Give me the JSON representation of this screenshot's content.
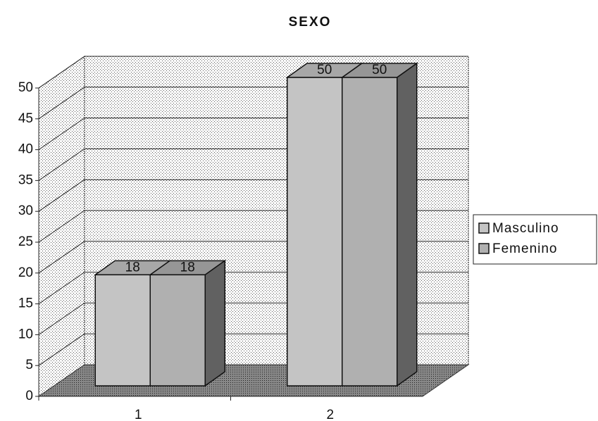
{
  "chart_data": {
    "type": "bar3d",
    "title": "SEXO",
    "categories": [
      "1",
      "2"
    ],
    "series": [
      {
        "name": "Masculino",
        "color": "#c4c4c4",
        "values": [
          18,
          50
        ]
      },
      {
        "name": "Femenino",
        "color": "#b0b0b0",
        "values": [
          18,
          50
        ]
      }
    ],
    "ylim": [
      0,
      50
    ],
    "yticks": [
      0,
      5,
      10,
      15,
      20,
      25,
      30,
      35,
      40,
      45,
      50
    ],
    "grid": true,
    "legend": "right"
  }
}
